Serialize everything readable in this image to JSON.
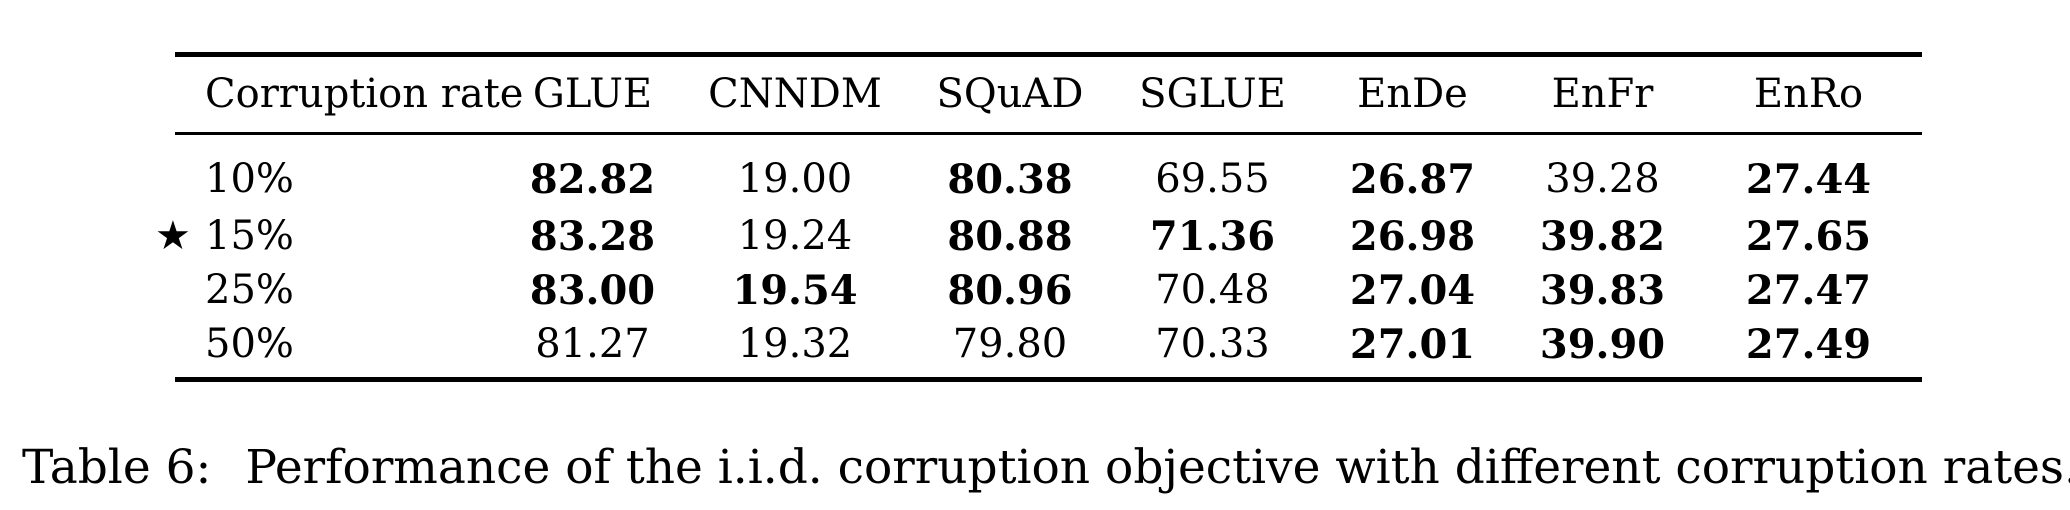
{
  "table": {
    "columns": [
      "Corruption rate",
      "GLUE",
      "CNNDM",
      "SQuAD",
      "SGLUE",
      "EnDe",
      "EnFr",
      "EnRo"
    ],
    "rows": [
      {
        "marker": "",
        "rate": "10%",
        "values": [
          "82.82",
          "19.00",
          "80.38",
          "69.55",
          "26.87",
          "39.28",
          "27.44"
        ],
        "bold": [
          true,
          false,
          true,
          false,
          true,
          false,
          true
        ]
      },
      {
        "marker": "★",
        "rate": "15%",
        "values": [
          "83.28",
          "19.24",
          "80.88",
          "71.36",
          "26.98",
          "39.82",
          "27.65"
        ],
        "bold": [
          true,
          false,
          true,
          true,
          true,
          true,
          true
        ]
      },
      {
        "marker": "",
        "rate": "25%",
        "values": [
          "83.00",
          "19.54",
          "80.96",
          "70.48",
          "27.04",
          "39.83",
          "27.47"
        ],
        "bold": [
          true,
          true,
          true,
          false,
          true,
          true,
          true
        ]
      },
      {
        "marker": "",
        "rate": "50%",
        "values": [
          "81.27",
          "19.32",
          "79.80",
          "70.33",
          "27.01",
          "39.90",
          "27.49"
        ],
        "bold": [
          false,
          false,
          false,
          false,
          true,
          true,
          true
        ]
      }
    ]
  },
  "caption": {
    "label": "Table 6:",
    "text": "Performance of the i.i.d. corruption objective with different corruption rates."
  }
}
